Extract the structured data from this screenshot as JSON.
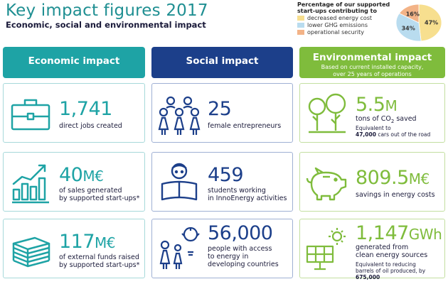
{
  "header": {
    "title": "Key impact figures 2017",
    "subtitle": "Economic, social and environmental impact"
  },
  "legend": {
    "title_line1": "Percentage of our supported",
    "title_line2": "start-ups contributing to",
    "items": [
      {
        "label": "decreased energy cost",
        "color": "#f7df8f"
      },
      {
        "label": "lower GHG emissions",
        "color": "#b9dcef"
      },
      {
        "label": "operational security",
        "color": "#f3b387"
      }
    ]
  },
  "chart_data": {
    "type": "pie",
    "categories": [
      "decreased energy cost",
      "lower GHG emissions",
      "operational security"
    ],
    "values": [
      47,
      34,
      16
    ],
    "value_labels": [
      "47%",
      "34%",
      "16%"
    ],
    "colors": [
      "#f7df8f",
      "#b9dcef",
      "#f3b387"
    ]
  },
  "columns": {
    "economic": {
      "title": "Economic impact"
    },
    "social": {
      "title": "Social impact"
    },
    "environmental": {
      "title": "Environmental impact",
      "sub_line1": "Based on current installed capacity,",
      "sub_line2": "over 25 years of operations"
    }
  },
  "economic": {
    "jobs": {
      "value": "1,741",
      "unit": "",
      "desc1": "direct jobs created",
      "icon": "briefcase-icon"
    },
    "sales": {
      "value": "40",
      "unit": "M€",
      "desc1": "of sales generated",
      "desc2": "by supported start-ups*",
      "icon": "bar-chart-icon"
    },
    "funds": {
      "value": "117",
      "unit": "M€",
      "desc1": "of external funds raised",
      "desc2": "by supported start-ups*",
      "icon": "money-stack-icon"
    }
  },
  "social": {
    "entrepreneurs": {
      "value": "25",
      "desc1": "female entrepreneurs",
      "icon": "women-group-icon"
    },
    "students": {
      "value": "459",
      "desc1": "students working",
      "desc2": "in InnoEnergy activities",
      "icon": "student-reading-icon"
    },
    "access": {
      "value": "56,000",
      "desc1": "people with access",
      "desc2": "to energy in",
      "desc3": "developing countries",
      "icon": "family-lightbulb-icon"
    }
  },
  "environmental": {
    "co2": {
      "value": "5.5",
      "unit": "M",
      "desc_pre": "tons of CO",
      "desc_sub": "2",
      "desc_post": " saved",
      "note1": "Equivalent to",
      "note_bold": "47,000",
      "note_post": " cars out of the road",
      "icon": "trees-icon"
    },
    "savings": {
      "value": "809.5",
      "unit": "M€",
      "desc1": "savings in energy costs",
      "icon": "piggy-bank-icon"
    },
    "energy": {
      "value": "1,147",
      "unit": "GWh",
      "desc1": "generated from",
      "desc2": "clean energy sources",
      "note1": "Equivalent to reducing",
      "note2_pre": "barrels of oil produced, by ",
      "note2_bold": "675,000",
      "icon": "solar-panel-icon"
    }
  }
}
